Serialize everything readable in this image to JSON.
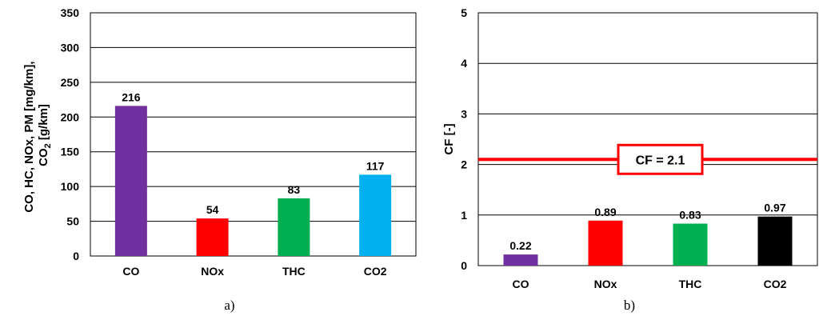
{
  "chart_data": [
    {
      "type": "bar",
      "caption": "a)",
      "categories": [
        "CO",
        "NOx",
        "THC",
        "CO2"
      ],
      "values": [
        216,
        54,
        83,
        117
      ],
      "data_labels": [
        "216",
        "54",
        "83",
        "117"
      ],
      "colors": [
        "#7030a0",
        "#ff0000",
        "#00b050",
        "#00b0f0"
      ],
      "ylabel_line1": "CO, HC, NOx, PM [mg/km],",
      "ylabel_line2_main": "CO",
      "ylabel_line2_sub": "2",
      "ylabel_line2_rest": " [g/km]",
      "ylim": [
        0,
        350
      ],
      "yticks": [
        "0",
        "50",
        "100",
        "150",
        "200",
        "250",
        "300",
        "350"
      ],
      "grid": true
    },
    {
      "type": "bar",
      "caption": "b)",
      "categories": [
        "CO",
        "NOx",
        "THC",
        "CO2"
      ],
      "values": [
        0.22,
        0.89,
        0.83,
        0.97
      ],
      "data_labels": [
        "0.22",
        "0.89",
        "0.83",
        "0.97"
      ],
      "colors": [
        "#7030a0",
        "#ff0000",
        "#00b050",
        "#000000"
      ],
      "ylabel": "CF [-]",
      "ylim": [
        0,
        5
      ],
      "yticks": [
        "0",
        "1",
        "2",
        "3",
        "4",
        "5"
      ],
      "grid": true,
      "reference_line": {
        "value": 2.1,
        "label": "CF = 2.1",
        "color": "#ff0000"
      }
    }
  ]
}
